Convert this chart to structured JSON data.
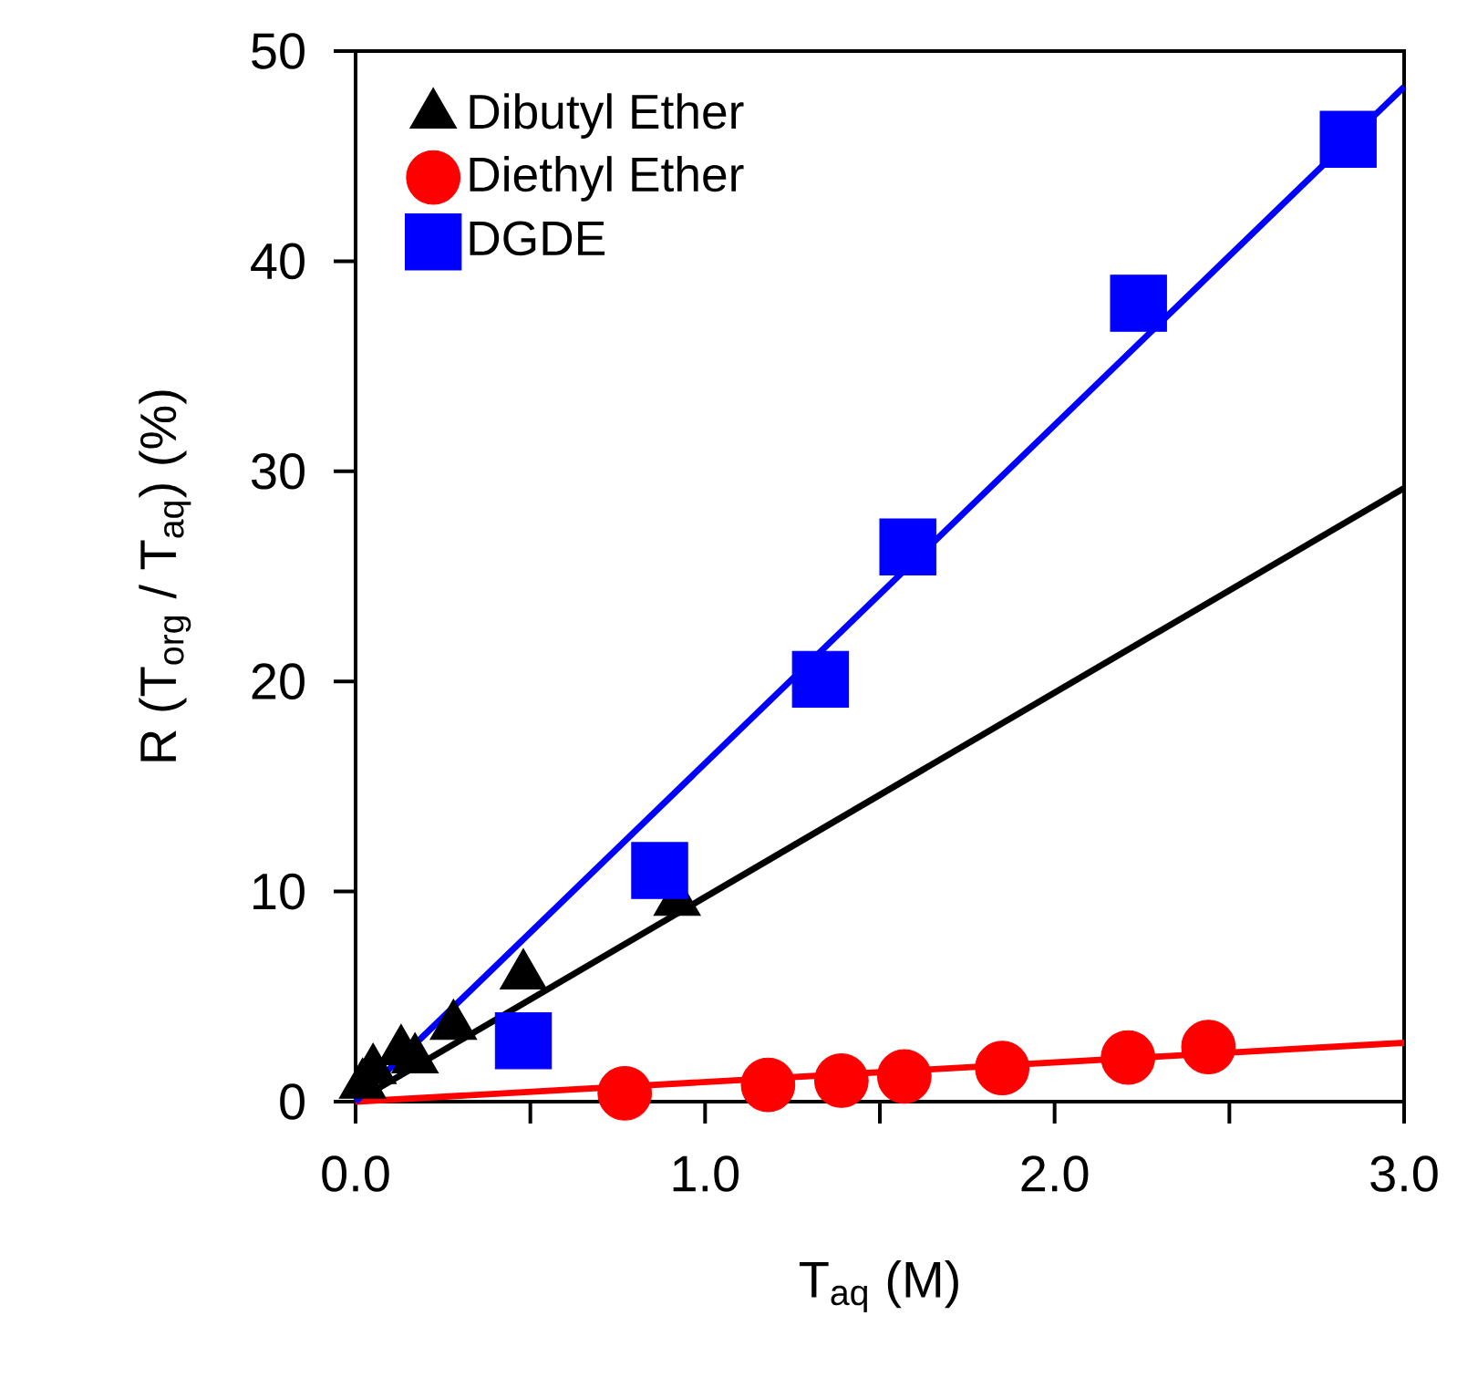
{
  "chart_data": {
    "type": "scatter",
    "xlabel": "T$_{aq}$ (M)",
    "ylabel": "R (T$_{org}$ / T$_{aq}$) (%)",
    "xlim": [
      0,
      3
    ],
    "ylim": [
      0,
      50
    ],
    "xticks": [
      {
        "value": 0,
        "label": "0.0"
      },
      {
        "value": 0.5,
        "label": null
      },
      {
        "value": 1,
        "label": "1.0"
      },
      {
        "value": 1.5,
        "label": null
      },
      {
        "value": 2,
        "label": "2.0"
      },
      {
        "value": 2.5,
        "label": null
      },
      {
        "value": 3,
        "label": "3.0"
      }
    ],
    "yticks": [
      0,
      10,
      20,
      30,
      40,
      50
    ],
    "legend": "top left",
    "grid": false,
    "series": [
      {
        "name": "Dibutyl Ether",
        "color": "#000000",
        "marker": "triangle",
        "x": [
          0.02,
          0.05,
          0.1,
          0.13,
          0.17,
          0.28,
          0.48,
          0.92
        ],
        "values": [
          0.8,
          1.5,
          null,
          2.4,
          2.0,
          3.6,
          6.0,
          9.5
        ]
      },
      {
        "name": "Diethyl Ether",
        "color": "#ff0000",
        "marker": "circle",
        "x": [
          0.77,
          1.18,
          1.39,
          1.57,
          1.85,
          2.21,
          2.44
        ],
        "values": [
          0.4,
          0.8,
          1.0,
          1.2,
          1.6,
          2.1,
          2.6
        ]
      },
      {
        "name": "DGDE",
        "color": "#0000ff",
        "marker": "square",
        "x": [
          0.48,
          0.87,
          1.33,
          1.58,
          2.24,
          2.84
        ],
        "values": [
          2.9,
          11.0,
          20.1,
          26.4,
          38.0,
          45.8
        ]
      },
      {
        "type": "line",
        "color": "#000000",
        "line_style": "solid",
        "marker": "none",
        "x": [
          0,
          3
        ],
        "values": [
          0,
          29.2
        ]
      },
      {
        "type": "line",
        "color": "#ff0000",
        "line_style": "solid",
        "marker": "none",
        "x": [
          0,
          3
        ],
        "values": [
          0,
          2.8
        ]
      },
      {
        "type": "line",
        "color": "#0000ff",
        "line_style": "solid",
        "marker": "none",
        "x": [
          0,
          3
        ],
        "values": [
          0,
          48.3
        ]
      }
    ]
  }
}
